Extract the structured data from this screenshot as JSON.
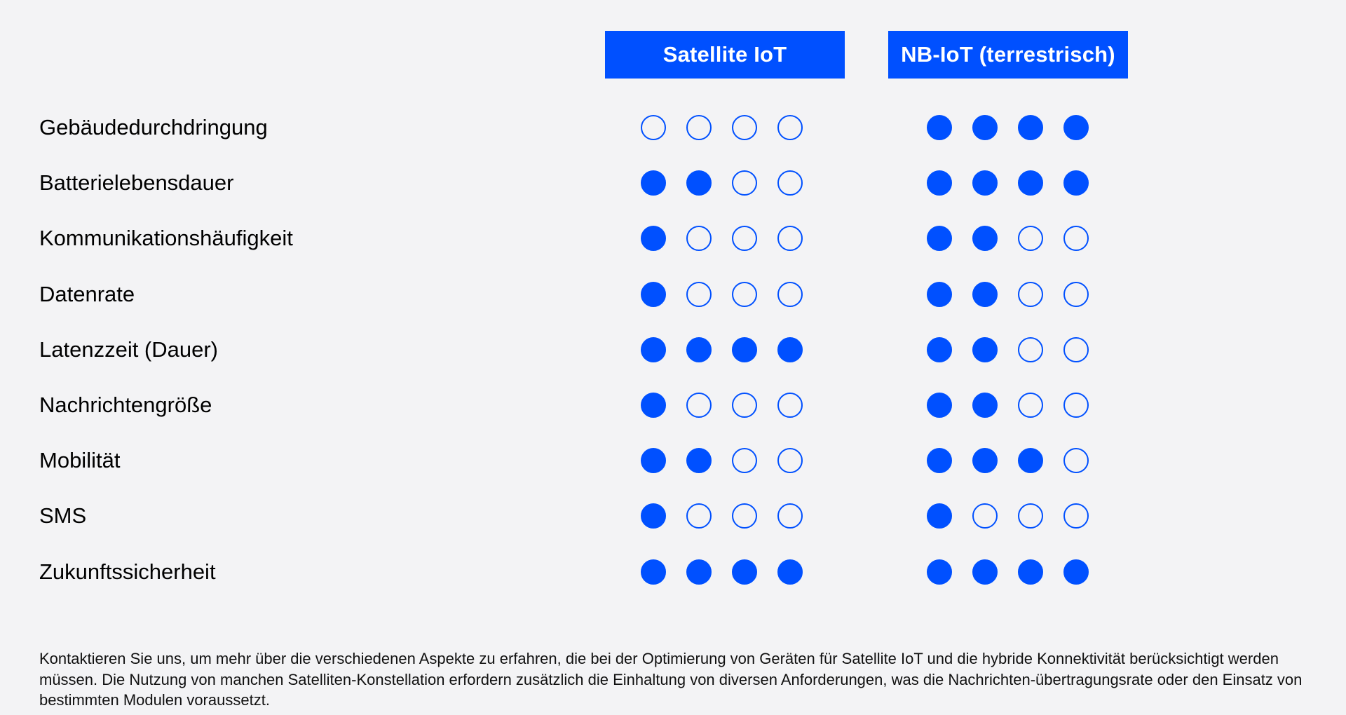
{
  "colors": {
    "accent": "#0050ff",
    "background": "#f3f3f5",
    "header_text": "#ffffff"
  },
  "chart_data": {
    "type": "table",
    "title": "",
    "scale_max": 4,
    "columns": [
      {
        "name": "Satellite IoT"
      },
      {
        "name": "NB-IoT (terrestrisch)"
      }
    ],
    "rows": [
      {
        "label": "Gebäudedurchdringung",
        "values": [
          0,
          4
        ]
      },
      {
        "label": "Batterielebensdauer",
        "values": [
          2,
          4
        ]
      },
      {
        "label": "Kommunikationshäufigkeit",
        "values": [
          1,
          2
        ]
      },
      {
        "label": "Datenrate",
        "values": [
          1,
          2
        ]
      },
      {
        "label": "Latenzzeit (Dauer)",
        "values": [
          4,
          2
        ]
      },
      {
        "label": "Nachrichtengröße",
        "values": [
          1,
          2
        ]
      },
      {
        "label": "Mobilität",
        "values": [
          2,
          3
        ]
      },
      {
        "label": "SMS",
        "values": [
          1,
          1
        ]
      },
      {
        "label": "Zukunftssicherheit",
        "values": [
          4,
          4
        ]
      }
    ]
  },
  "footnote": "Kontaktieren Sie uns, um mehr über die verschiedenen Aspekte zu erfahren, die bei der Optimierung von Geräten für Satellite IoT und die hybride Konnektivität berücksichtigt werden müssen. Die Nutzung von manchen Satelliten-Konstellation erfordern zusätzlich die Einhaltung von diversen Anforderungen, was die Nachrichten-übertragungsrate oder den Einsatz von bestimmten Modulen voraussetzt."
}
